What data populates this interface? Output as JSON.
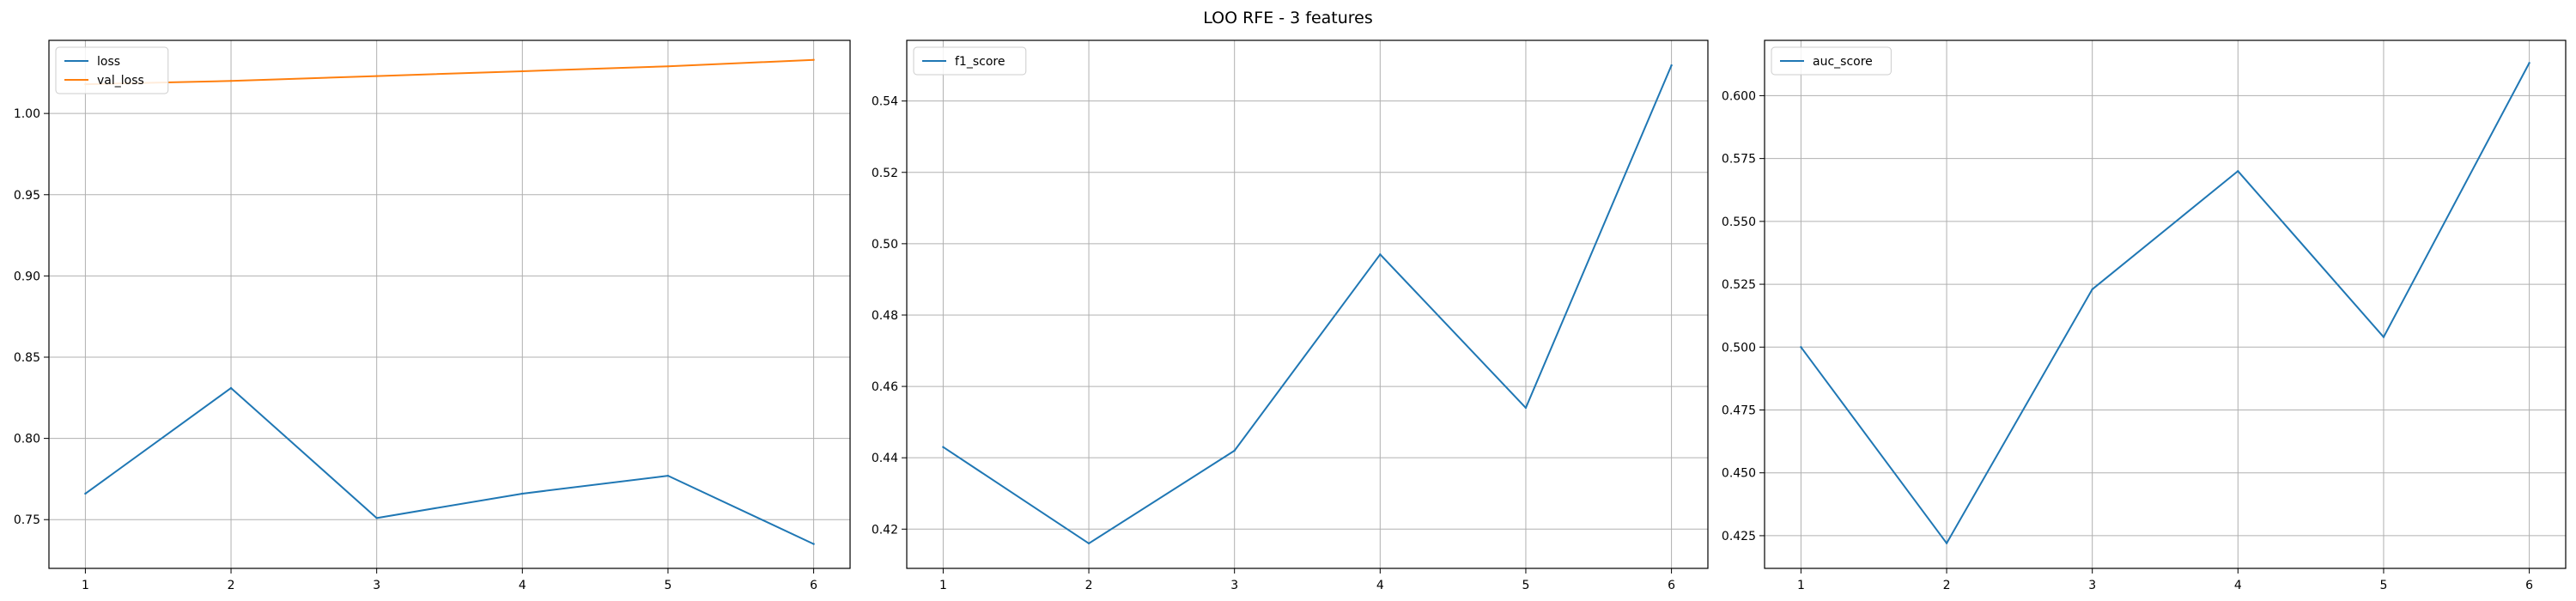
{
  "figure_title": "LOO RFE - 3 features",
  "chart_data": [
    {
      "type": "line",
      "title": "",
      "xlabel": "",
      "ylabel": "",
      "x": [
        1,
        2,
        3,
        4,
        5,
        6
      ],
      "xlim": [
        0.75,
        6.25
      ],
      "ylim": [
        0.72,
        1.045
      ],
      "xticks": [
        1,
        2,
        3,
        4,
        5,
        6
      ],
      "yticks": [
        "0.75",
        "0.80",
        "0.85",
        "0.90",
        "0.95",
        "1.00"
      ],
      "grid": true,
      "legend_position": "upper-left",
      "series": [
        {
          "name": "loss",
          "color": "#1f77b4",
          "values": [
            0.766,
            0.831,
            0.751,
            0.766,
            0.777,
            0.735
          ]
        },
        {
          "name": "val_loss",
          "color": "#ff7f0e",
          "values": [
            1.018,
            1.02,
            1.023,
            1.026,
            1.029,
            1.033
          ]
        }
      ]
    },
    {
      "type": "line",
      "title": "",
      "xlabel": "",
      "ylabel": "",
      "x": [
        1,
        2,
        3,
        4,
        5,
        6
      ],
      "xlim": [
        0.75,
        6.25
      ],
      "ylim": [
        0.409,
        0.557
      ],
      "xticks": [
        1,
        2,
        3,
        4,
        5,
        6
      ],
      "yticks": [
        "0.42",
        "0.44",
        "0.46",
        "0.48",
        "0.50",
        "0.52",
        "0.54"
      ],
      "grid": true,
      "legend_position": "upper-left",
      "series": [
        {
          "name": "f1_score",
          "color": "#1f77b4",
          "values": [
            0.443,
            0.416,
            0.442,
            0.497,
            0.454,
            0.55
          ]
        }
      ]
    },
    {
      "type": "line",
      "title": "",
      "xlabel": "",
      "ylabel": "",
      "x": [
        1,
        2,
        3,
        4,
        5,
        6
      ],
      "xlim": [
        0.75,
        6.25
      ],
      "ylim": [
        0.412,
        0.622
      ],
      "xticks": [
        1,
        2,
        3,
        4,
        5,
        6
      ],
      "yticks": [
        "0.425",
        "0.450",
        "0.475",
        "0.500",
        "0.525",
        "0.550",
        "0.575",
        "0.600"
      ],
      "grid": true,
      "legend_position": "upper-left",
      "series": [
        {
          "name": "auc_score",
          "color": "#1f77b4",
          "values": [
            0.5,
            0.422,
            0.523,
            0.57,
            0.504,
            0.613
          ]
        }
      ]
    }
  ]
}
